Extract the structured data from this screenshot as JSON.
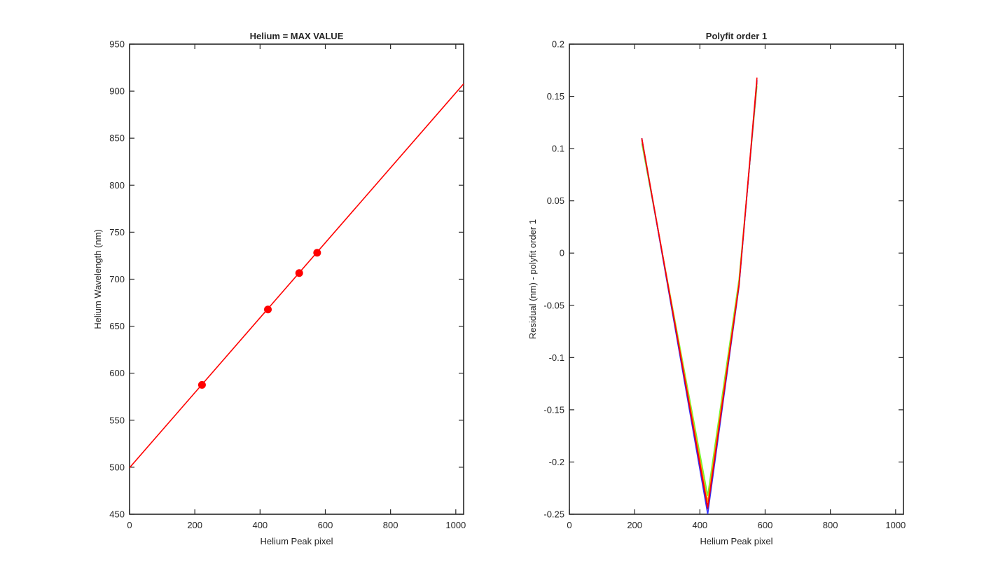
{
  "chart_data": [
    {
      "type": "line",
      "title": "Helium = MAX VALUE",
      "xlabel": "Helium Peak pixel",
      "ylabel": "Helium Wavelength (nm)",
      "xlim": [
        0,
        1024
      ],
      "ylim": [
        450,
        950
      ],
      "xticks": [
        0,
        200,
        400,
        600,
        800,
        1000
      ],
      "yticks": [
        450,
        500,
        550,
        600,
        650,
        700,
        750,
        800,
        850,
        900,
        950
      ],
      "grid": false,
      "series": [
        {
          "color": "#ff0000",
          "style": "line",
          "x": [
            0,
            1024
          ],
          "y": [
            499.5,
            907.8
          ]
        },
        {
          "color": "#ff0000",
          "style": "markers",
          "x": [
            222,
            424,
            520,
            575
          ],
          "y": [
            587.6,
            667.8,
            706.5,
            728.1
          ]
        }
      ]
    },
    {
      "type": "line",
      "title": "Polyfit order 1",
      "xlabel": "Helium Peak pixel",
      "ylabel": "Residual (nm) - polyfit order 1",
      "xlim": [
        0,
        1024
      ],
      "ylim": [
        -0.25,
        0.2
      ],
      "xticks": [
        0,
        200,
        400,
        600,
        800,
        1000
      ],
      "yticks": [
        -0.25,
        -0.2,
        -0.15,
        -0.1,
        -0.05,
        0,
        0.05,
        0.1,
        0.15,
        0.2
      ],
      "grid": false,
      "series": [
        {
          "color": "#66ff33",
          "x": [
            222,
            424,
            520,
            575
          ],
          "y": [
            0.105,
            -0.232,
            -0.025,
            0.16
          ]
        },
        {
          "color": "#ffaa00",
          "x": [
            222,
            424,
            520,
            575
          ],
          "y": [
            0.108,
            -0.238,
            -0.028,
            0.163
          ]
        },
        {
          "color": "#3333ff",
          "x": [
            222,
            424,
            520,
            575
          ],
          "y": [
            0.11,
            -0.25,
            -0.032,
            0.166
          ]
        },
        {
          "color": "#990066",
          "x": [
            222,
            424,
            520,
            575
          ],
          "y": [
            0.109,
            -0.245,
            -0.031,
            0.165
          ]
        },
        {
          "color": "#ff0000",
          "x": [
            222,
            424,
            520,
            575
          ],
          "y": [
            0.11,
            -0.243,
            -0.03,
            0.168
          ]
        }
      ]
    }
  ]
}
